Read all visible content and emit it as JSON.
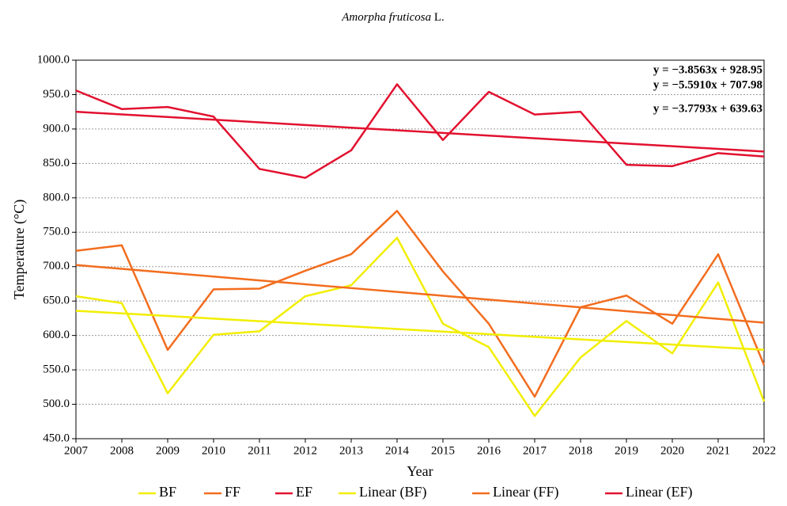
{
  "chart_data": {
    "type": "line",
    "title": {
      "italic": "Amorpha fruticosa",
      "text": "L."
    },
    "x_label": "Year",
    "y_label": "Temperature (°C)",
    "x": [
      2007,
      2008,
      2009,
      2010,
      2011,
      2012,
      2013,
      2014,
      2015,
      2016,
      2017,
      2018,
      2019,
      2020,
      2021,
      2022
    ],
    "xlim": [
      2007,
      2022
    ],
    "xticks": [
      2007,
      2008,
      2009,
      2010,
      2011,
      2012,
      2013,
      2014,
      2015,
      2016,
      2017,
      2018,
      2019,
      2020,
      2021,
      2022
    ],
    "ylim": [
      450,
      1000
    ],
    "yticks": [
      {
        "value": 450,
        "label": "450.0"
      },
      {
        "value": 500,
        "label": "500.0"
      },
      {
        "value": 550,
        "label": "550.0"
      },
      {
        "value": 600,
        "label": "600.0"
      },
      {
        "value": 650,
        "label": "650.0"
      },
      {
        "value": 700,
        "label": "700.0"
      },
      {
        "value": 750,
        "label": "750.0"
      },
      {
        "value": 800,
        "label": "800.0"
      },
      {
        "value": 850,
        "label": "850.0"
      },
      {
        "value": 900,
        "label": "900.0"
      },
      {
        "value": 950,
        "label": "950.0"
      },
      {
        "value": 1000,
        "label": "1000.0"
      }
    ],
    "grid": true,
    "legend": "bottom",
    "series": [
      {
        "name": "BF",
        "color": "#f2ee00",
        "values": [
          657,
          647,
          516,
          601,
          606,
          657,
          673,
          742,
          617,
          583,
          483,
          568,
          621,
          574,
          677,
          504
        ]
      },
      {
        "name": "FF",
        "color": "#f26d1f",
        "values": [
          723,
          731,
          579,
          667,
          668,
          694,
          718,
          781,
          693,
          617,
          511,
          641,
          658,
          617,
          718,
          557
        ]
      },
      {
        "name": "EF",
        "color": "#e2112f",
        "values": [
          956,
          929,
          932,
          918,
          842,
          829,
          869,
          965,
          884,
          954,
          921,
          925,
          848,
          846,
          865,
          860
        ]
      },
      {
        "name": "Linear (BF)",
        "color": "#f2ee00",
        "values": [
          635.85,
          632.07,
          628.29,
          624.51,
          620.73,
          616.95,
          613.18,
          609.39,
          605.62,
          601.84,
          598.06,
          594.28,
          590.5,
          586.72,
          582.94,
          579.16
        ]
      },
      {
        "name": "Linear (FF)",
        "color": "#f26d1f",
        "values": [
          702.39,
          696.8,
          691.21,
          685.62,
          680.03,
          674.43,
          668.84,
          663.25,
          657.66,
          652.07,
          646.48,
          640.89,
          635.3,
          629.71,
          624.11,
          618.52
        ]
      },
      {
        "name": "Linear (EF)",
        "color": "#e2112f",
        "values": [
          925.09,
          921.24,
          917.38,
          913.53,
          909.67,
          905.81,
          901.96,
          898.1,
          894.24,
          890.39,
          886.53,
          882.68,
          878.82,
          874.96,
          871.11,
          867.25
        ]
      }
    ],
    "annotations": [
      {
        "text": "y = −3.8563x + 928.95",
        "color": "#e2112f"
      },
      {
        "text": "y = −5.5910x + 707.98",
        "color": "#f26d1f"
      },
      {
        "text": "y = −3.7793x + 639.63",
        "color": "#c9c400"
      }
    ]
  }
}
